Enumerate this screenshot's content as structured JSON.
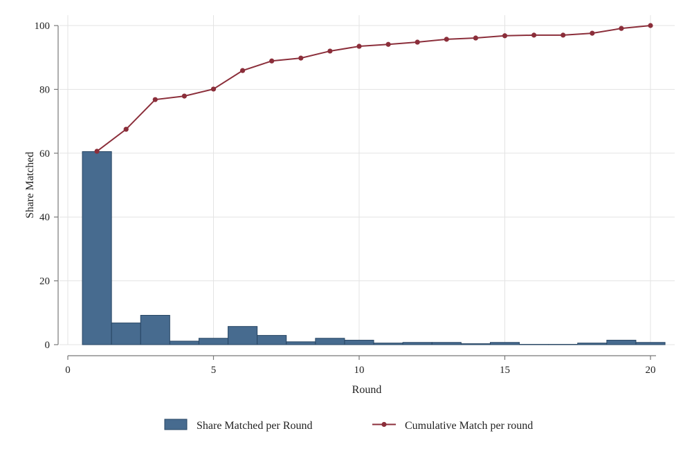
{
  "chart_data": {
    "type": "bar+line",
    "xlabel": "Round",
    "ylabel": "Share Matched",
    "xlim": [
      0,
      20.5
    ],
    "ylim": [
      0,
      100
    ],
    "xticks": [
      0,
      5,
      10,
      15,
      20
    ],
    "yticks": [
      0,
      20,
      40,
      60,
      80,
      100
    ],
    "grid": true,
    "legend_position": "bottom",
    "series": [
      {
        "name": "Share Matched per Round",
        "type": "bar",
        "color": "#476b8f",
        "x": [
          1,
          2,
          3,
          4,
          5,
          6,
          7,
          8,
          9,
          10,
          11,
          12,
          13,
          14,
          15,
          16,
          17,
          18,
          19,
          20
        ],
        "values": [
          60.5,
          6.8,
          9.2,
          1.1,
          2.0,
          5.7,
          2.9,
          0.9,
          2.0,
          1.4,
          0.5,
          0.7,
          0.7,
          0.3,
          0.7,
          0.1,
          0.1,
          0.5,
          1.4,
          0.7
        ]
      },
      {
        "name": "Cumulative Match per round",
        "type": "line",
        "color": "#8b2e3a",
        "x": [
          1,
          2,
          3,
          4,
          5,
          6,
          7,
          8,
          9,
          10,
          11,
          12,
          13,
          14,
          15,
          16,
          17,
          18,
          19,
          20
        ],
        "values": [
          60.6,
          67.5,
          76.8,
          77.9,
          80.1,
          85.9,
          88.9,
          89.8,
          92.0,
          93.5,
          94.1,
          94.8,
          95.7,
          96.1,
          96.8,
          97.0,
          97.0,
          97.6,
          99.1,
          100.0
        ]
      }
    ]
  }
}
